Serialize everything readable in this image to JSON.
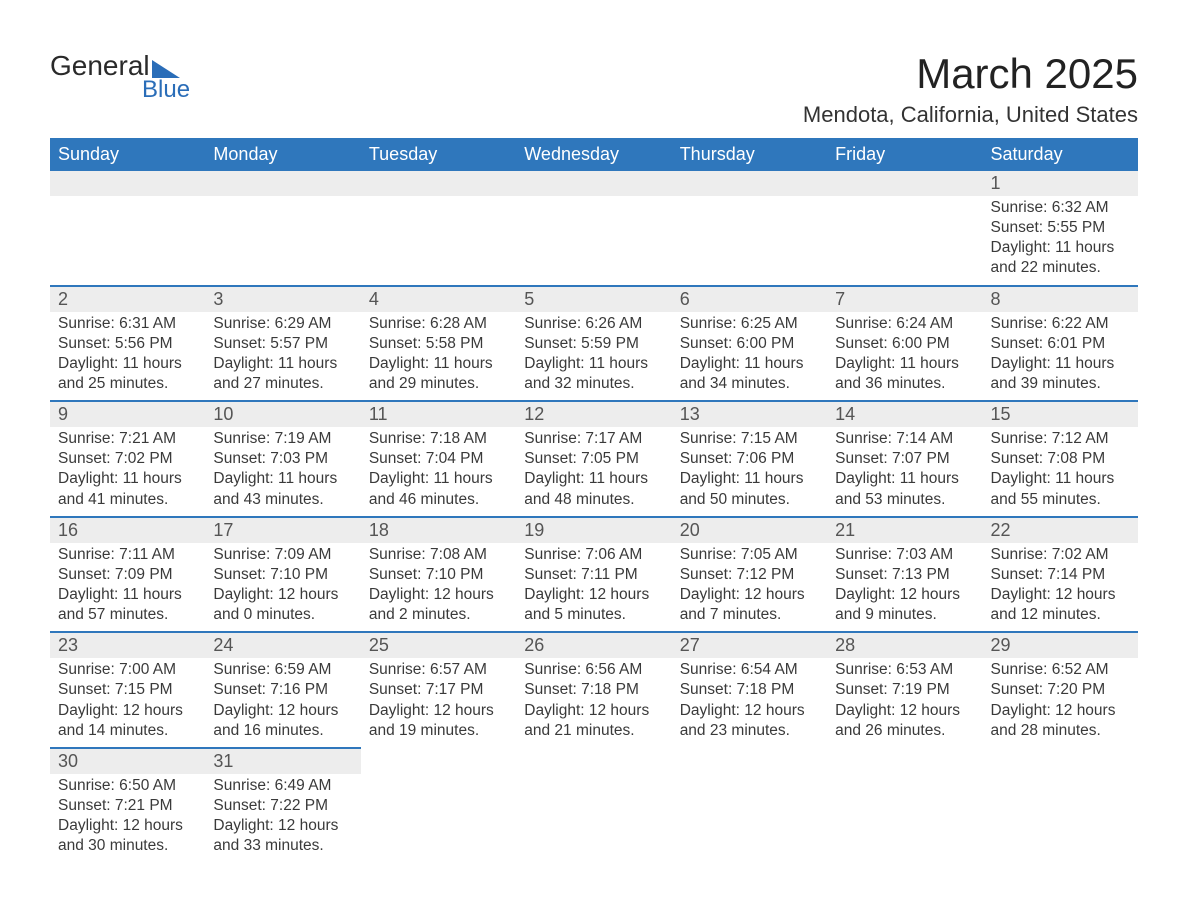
{
  "brand": {
    "word1": "General",
    "word2": "Blue"
  },
  "title": "March 2025",
  "location": "Mendota, California, United States",
  "colors": {
    "header_bg": "#2f77bc",
    "header_text": "#ffffff",
    "daynum_bg": "#ededed",
    "row_divider": "#2f77bc",
    "body_text": "#3a3a3a",
    "background": "#ffffff"
  },
  "typography": {
    "title_fontsize": 42,
    "location_fontsize": 22,
    "header_fontsize": 18,
    "daynum_fontsize": 18,
    "body_fontsize": 15.5
  },
  "layout": {
    "columns": 7,
    "rows": 6
  },
  "weekdays": [
    "Sunday",
    "Monday",
    "Tuesday",
    "Wednesday",
    "Thursday",
    "Friday",
    "Saturday"
  ],
  "weeks": [
    [
      {
        "empty": true
      },
      {
        "empty": true
      },
      {
        "empty": true
      },
      {
        "empty": true
      },
      {
        "empty": true
      },
      {
        "empty": true
      },
      {
        "day": "1",
        "sunrise": "Sunrise: 6:32 AM",
        "sunset": "Sunset: 5:55 PM",
        "daylight1": "Daylight: 11 hours",
        "daylight2": "and 22 minutes."
      }
    ],
    [
      {
        "day": "2",
        "sunrise": "Sunrise: 6:31 AM",
        "sunset": "Sunset: 5:56 PM",
        "daylight1": "Daylight: 11 hours",
        "daylight2": "and 25 minutes."
      },
      {
        "day": "3",
        "sunrise": "Sunrise: 6:29 AM",
        "sunset": "Sunset: 5:57 PM",
        "daylight1": "Daylight: 11 hours",
        "daylight2": "and 27 minutes."
      },
      {
        "day": "4",
        "sunrise": "Sunrise: 6:28 AM",
        "sunset": "Sunset: 5:58 PM",
        "daylight1": "Daylight: 11 hours",
        "daylight2": "and 29 minutes."
      },
      {
        "day": "5",
        "sunrise": "Sunrise: 6:26 AM",
        "sunset": "Sunset: 5:59 PM",
        "daylight1": "Daylight: 11 hours",
        "daylight2": "and 32 minutes."
      },
      {
        "day": "6",
        "sunrise": "Sunrise: 6:25 AM",
        "sunset": "Sunset: 6:00 PM",
        "daylight1": "Daylight: 11 hours",
        "daylight2": "and 34 minutes."
      },
      {
        "day": "7",
        "sunrise": "Sunrise: 6:24 AM",
        "sunset": "Sunset: 6:00 PM",
        "daylight1": "Daylight: 11 hours",
        "daylight2": "and 36 minutes."
      },
      {
        "day": "8",
        "sunrise": "Sunrise: 6:22 AM",
        "sunset": "Sunset: 6:01 PM",
        "daylight1": "Daylight: 11 hours",
        "daylight2": "and 39 minutes."
      }
    ],
    [
      {
        "day": "9",
        "sunrise": "Sunrise: 7:21 AM",
        "sunset": "Sunset: 7:02 PM",
        "daylight1": "Daylight: 11 hours",
        "daylight2": "and 41 minutes."
      },
      {
        "day": "10",
        "sunrise": "Sunrise: 7:19 AM",
        "sunset": "Sunset: 7:03 PM",
        "daylight1": "Daylight: 11 hours",
        "daylight2": "and 43 minutes."
      },
      {
        "day": "11",
        "sunrise": "Sunrise: 7:18 AM",
        "sunset": "Sunset: 7:04 PM",
        "daylight1": "Daylight: 11 hours",
        "daylight2": "and 46 minutes."
      },
      {
        "day": "12",
        "sunrise": "Sunrise: 7:17 AM",
        "sunset": "Sunset: 7:05 PM",
        "daylight1": "Daylight: 11 hours",
        "daylight2": "and 48 minutes."
      },
      {
        "day": "13",
        "sunrise": "Sunrise: 7:15 AM",
        "sunset": "Sunset: 7:06 PM",
        "daylight1": "Daylight: 11 hours",
        "daylight2": "and 50 minutes."
      },
      {
        "day": "14",
        "sunrise": "Sunrise: 7:14 AM",
        "sunset": "Sunset: 7:07 PM",
        "daylight1": "Daylight: 11 hours",
        "daylight2": "and 53 minutes."
      },
      {
        "day": "15",
        "sunrise": "Sunrise: 7:12 AM",
        "sunset": "Sunset: 7:08 PM",
        "daylight1": "Daylight: 11 hours",
        "daylight2": "and 55 minutes."
      }
    ],
    [
      {
        "day": "16",
        "sunrise": "Sunrise: 7:11 AM",
        "sunset": "Sunset: 7:09 PM",
        "daylight1": "Daylight: 11 hours",
        "daylight2": "and 57 minutes."
      },
      {
        "day": "17",
        "sunrise": "Sunrise: 7:09 AM",
        "sunset": "Sunset: 7:10 PM",
        "daylight1": "Daylight: 12 hours",
        "daylight2": "and 0 minutes."
      },
      {
        "day": "18",
        "sunrise": "Sunrise: 7:08 AM",
        "sunset": "Sunset: 7:10 PM",
        "daylight1": "Daylight: 12 hours",
        "daylight2": "and 2 minutes."
      },
      {
        "day": "19",
        "sunrise": "Sunrise: 7:06 AM",
        "sunset": "Sunset: 7:11 PM",
        "daylight1": "Daylight: 12 hours",
        "daylight2": "and 5 minutes."
      },
      {
        "day": "20",
        "sunrise": "Sunrise: 7:05 AM",
        "sunset": "Sunset: 7:12 PM",
        "daylight1": "Daylight: 12 hours",
        "daylight2": "and 7 minutes."
      },
      {
        "day": "21",
        "sunrise": "Sunrise: 7:03 AM",
        "sunset": "Sunset: 7:13 PM",
        "daylight1": "Daylight: 12 hours",
        "daylight2": "and 9 minutes."
      },
      {
        "day": "22",
        "sunrise": "Sunrise: 7:02 AM",
        "sunset": "Sunset: 7:14 PM",
        "daylight1": "Daylight: 12 hours",
        "daylight2": "and 12 minutes."
      }
    ],
    [
      {
        "day": "23",
        "sunrise": "Sunrise: 7:00 AM",
        "sunset": "Sunset: 7:15 PM",
        "daylight1": "Daylight: 12 hours",
        "daylight2": "and 14 minutes."
      },
      {
        "day": "24",
        "sunrise": "Sunrise: 6:59 AM",
        "sunset": "Sunset: 7:16 PM",
        "daylight1": "Daylight: 12 hours",
        "daylight2": "and 16 minutes."
      },
      {
        "day": "25",
        "sunrise": "Sunrise: 6:57 AM",
        "sunset": "Sunset: 7:17 PM",
        "daylight1": "Daylight: 12 hours",
        "daylight2": "and 19 minutes."
      },
      {
        "day": "26",
        "sunrise": "Sunrise: 6:56 AM",
        "sunset": "Sunset: 7:18 PM",
        "daylight1": "Daylight: 12 hours",
        "daylight2": "and 21 minutes."
      },
      {
        "day": "27",
        "sunrise": "Sunrise: 6:54 AM",
        "sunset": "Sunset: 7:18 PM",
        "daylight1": "Daylight: 12 hours",
        "daylight2": "and 23 minutes."
      },
      {
        "day": "28",
        "sunrise": "Sunrise: 6:53 AM",
        "sunset": "Sunset: 7:19 PM",
        "daylight1": "Daylight: 12 hours",
        "daylight2": "and 26 minutes."
      },
      {
        "day": "29",
        "sunrise": "Sunrise: 6:52 AM",
        "sunset": "Sunset: 7:20 PM",
        "daylight1": "Daylight: 12 hours",
        "daylight2": "and 28 minutes."
      }
    ],
    [
      {
        "day": "30",
        "sunrise": "Sunrise: 6:50 AM",
        "sunset": "Sunset: 7:21 PM",
        "daylight1": "Daylight: 12 hours",
        "daylight2": "and 30 minutes."
      },
      {
        "day": "31",
        "sunrise": "Sunrise: 6:49 AM",
        "sunset": "Sunset: 7:22 PM",
        "daylight1": "Daylight: 12 hours",
        "daylight2": "and 33 minutes."
      },
      {
        "empty": true
      },
      {
        "empty": true
      },
      {
        "empty": true
      },
      {
        "empty": true
      },
      {
        "empty": true
      }
    ]
  ]
}
